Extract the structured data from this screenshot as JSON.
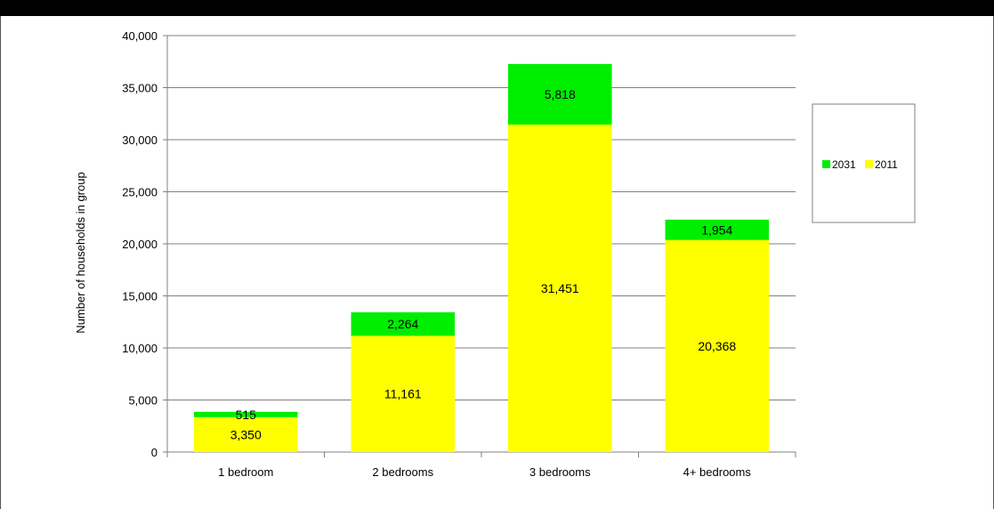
{
  "chart_data": {
    "type": "bar",
    "stacked": true,
    "title": "",
    "xlabel": "",
    "ylabel": "Number of households in group",
    "ylim": [
      0,
      40000
    ],
    "yticks": [
      0,
      5000,
      10000,
      15000,
      20000,
      25000,
      30000,
      35000,
      40000
    ],
    "ytick_labels": [
      "0",
      "5,000",
      "10,000",
      "15,000",
      "20,000",
      "25,000",
      "30,000",
      "35,000",
      "40,000"
    ],
    "grid": true,
    "legend_position": "right",
    "categories": [
      "1 bedroom",
      "2 bedrooms",
      "3 bedrooms",
      "4+ bedrooms"
    ],
    "series": [
      {
        "name": "2011",
        "color": "#ffff00",
        "values": [
          3350,
          11161,
          31451,
          20368
        ],
        "labels": [
          "3,350",
          "11,161",
          "31,451",
          "20,368"
        ]
      },
      {
        "name": "2031",
        "color": "#00ee00",
        "values": [
          515,
          2264,
          5818,
          1954
        ],
        "labels": [
          "515",
          "2,264",
          "5,818",
          "1,954"
        ]
      }
    ],
    "legend_order": [
      "2031",
      "2011"
    ]
  }
}
